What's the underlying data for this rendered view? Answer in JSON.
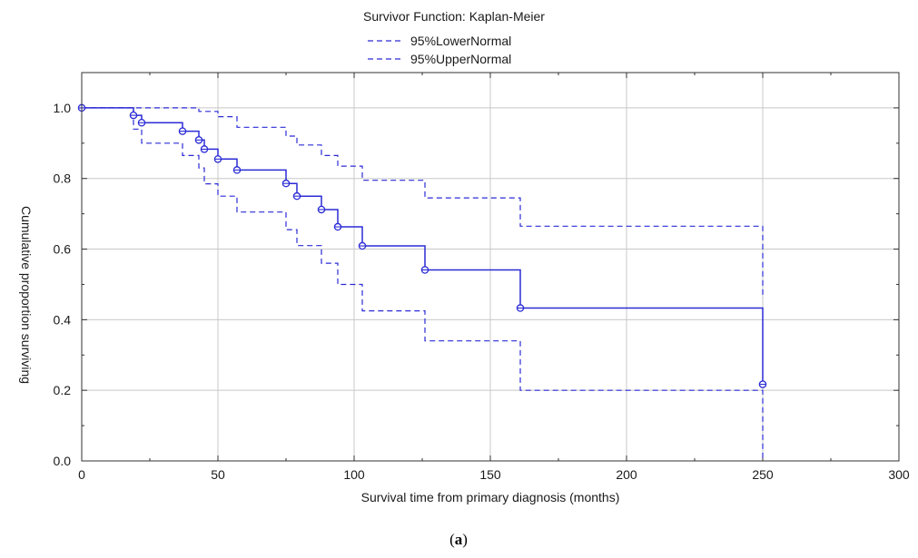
{
  "chart_data": {
    "type": "line",
    "title": "Survivor Function: Kaplan-Meier",
    "xlabel": "Survival time from primary diagnosis (months)",
    "ylabel": "Cumulative proportion surviving",
    "xlim": [
      0,
      300
    ],
    "ylim": [
      0,
      1.1
    ],
    "xticks": [
      "0",
      "50",
      "100",
      "150",
      "200",
      "250",
      "300"
    ],
    "yticks": [
      "0.0",
      "0.2",
      "0.4",
      "0.6",
      "0.8",
      "1.0"
    ],
    "grid": true,
    "legend_position": "top-center",
    "series": [
      {
        "key": "km",
        "style": "solid",
        "steps": [
          [
            0,
            1.0
          ],
          [
            19,
            0.979
          ],
          [
            22,
            0.958
          ],
          [
            37,
            0.934
          ],
          [
            43,
            0.909
          ],
          [
            45,
            0.883
          ],
          [
            50,
            0.855
          ],
          [
            57,
            0.824
          ],
          [
            75,
            0.786
          ],
          [
            79,
            0.75
          ],
          [
            88,
            0.712
          ],
          [
            94,
            0.663
          ],
          [
            103,
            0.609
          ],
          [
            126,
            0.541
          ],
          [
            161,
            0.433
          ],
          [
            250,
            0.217
          ]
        ],
        "censored": [
          [
            0,
            1.0
          ],
          [
            19,
            0.979
          ],
          [
            22,
            0.958
          ],
          [
            37,
            0.934
          ],
          [
            43,
            0.909
          ],
          [
            45,
            0.883
          ],
          [
            50,
            0.855
          ],
          [
            57,
            0.824
          ],
          [
            75,
            0.786
          ],
          [
            79,
            0.75
          ],
          [
            88,
            0.712
          ],
          [
            94,
            0.663
          ],
          [
            103,
            0.609
          ],
          [
            126,
            0.541
          ],
          [
            161,
            0.433
          ],
          [
            250,
            0.217
          ]
        ]
      },
      {
        "name": "95%LowerNormal",
        "style": "dashed",
        "steps": [
          [
            0,
            1.0
          ],
          [
            19,
            0.94
          ],
          [
            22,
            0.9
          ],
          [
            37,
            0.865
          ],
          [
            43,
            0.83
          ],
          [
            45,
            0.785
          ],
          [
            50,
            0.75
          ],
          [
            57,
            0.705
          ],
          [
            75,
            0.655
          ],
          [
            79,
            0.61
          ],
          [
            88,
            0.56
          ],
          [
            94,
            0.5
          ],
          [
            103,
            0.425
          ],
          [
            126,
            0.34
          ],
          [
            161,
            0.2
          ],
          [
            250,
            0.0
          ]
        ]
      },
      {
        "name": "95%UpperNormal",
        "style": "dashed",
        "steps": [
          [
            0,
            1.0
          ],
          [
            22,
            1.0
          ],
          [
            37,
            1.0
          ],
          [
            43,
            0.99
          ],
          [
            50,
            0.975
          ],
          [
            57,
            0.945
          ],
          [
            75,
            0.92
          ],
          [
            79,
            0.895
          ],
          [
            88,
            0.865
          ],
          [
            94,
            0.835
          ],
          [
            103,
            0.795
          ],
          [
            126,
            0.745
          ],
          [
            161,
            0.665
          ],
          [
            250,
            0.46
          ]
        ]
      }
    ]
  },
  "colors": {
    "series": "#2b2bd6",
    "grid": "#c8c8c8",
    "axis": "#303030"
  },
  "caption": {
    "open": "(",
    "letter": "a",
    "close": ")"
  }
}
